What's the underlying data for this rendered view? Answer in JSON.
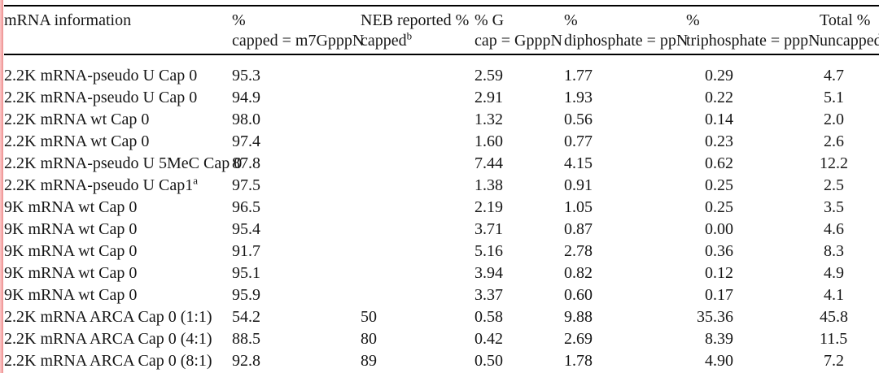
{
  "colors": {
    "background": "#ffffff",
    "text": "#161616",
    "rule": "#000000",
    "margin_bar_light": "#fbc9c9",
    "margin_bar_dark": "#ea8e8e"
  },
  "table": {
    "columns": [
      {
        "key": "name",
        "line1": "mRNA information",
        "line2": "",
        "sup": ""
      },
      {
        "key": "capped",
        "line1": "%",
        "line2": "capped = m7GpppN",
        "sup": ""
      },
      {
        "key": "neb",
        "line1": "NEB reported %",
        "line2": "capped",
        "sup": "b"
      },
      {
        "key": "gcap",
        "line1": "% G",
        "line2": "cap = GpppN",
        "sup": ""
      },
      {
        "key": "dip",
        "line1": "%",
        "line2": "diphosphate = ppN",
        "sup": ""
      },
      {
        "key": "tri",
        "line1": "%",
        "line2": "triphosphate = pppN",
        "sup": ""
      },
      {
        "key": "unc",
        "line1": "Total %",
        "line2": "uncapped",
        "sup": ""
      }
    ],
    "rows": [
      {
        "name": "2.2K mRNA-pseudo U Cap 0",
        "name_sup": "",
        "capped": "95.3",
        "neb": "",
        "gcap": "2.59",
        "dip": "1.77",
        "tri": "0.29",
        "unc": "4.7"
      },
      {
        "name": "2.2K mRNA-pseudo U Cap 0",
        "name_sup": "",
        "capped": "94.9",
        "neb": "",
        "gcap": "2.91",
        "dip": "1.93",
        "tri": "0.22",
        "unc": "5.1"
      },
      {
        "name": "2.2K mRNA wt Cap 0",
        "name_sup": "",
        "capped": "98.0",
        "neb": "",
        "gcap": "1.32",
        "dip": "0.56",
        "tri": "0.14",
        "unc": "2.0"
      },
      {
        "name": "2.2K mRNA wt Cap 0",
        "name_sup": "",
        "capped": "97.4",
        "neb": "",
        "gcap": "1.60",
        "dip": "0.77",
        "tri": "0.23",
        "unc": "2.6"
      },
      {
        "name": "2.2K mRNA-pseudo U 5MeC Cap 0",
        "name_sup": "",
        "capped": "87.8",
        "neb": "",
        "gcap": "7.44",
        "dip": "4.15",
        "tri": "0.62",
        "unc": "12.2"
      },
      {
        "name": "2.2K mRNA-pseudo U Cap1",
        "name_sup": "a",
        "capped": "97.5",
        "neb": "",
        "gcap": "1.38",
        "dip": "0.91",
        "tri": "0.25",
        "unc": "2.5"
      },
      {
        "name": "9K mRNA wt Cap 0",
        "name_sup": "",
        "capped": "96.5",
        "neb": "",
        "gcap": "2.19",
        "dip": "1.05",
        "tri": "0.25",
        "unc": "3.5"
      },
      {
        "name": "9K mRNA wt Cap 0",
        "name_sup": "",
        "capped": "95.4",
        "neb": "",
        "gcap": "3.71",
        "dip": "0.87",
        "tri": "0.00",
        "unc": "4.6"
      },
      {
        "name": "9K mRNA wt Cap 0",
        "name_sup": "",
        "capped": "91.7",
        "neb": "",
        "gcap": "5.16",
        "dip": "2.78",
        "tri": "0.36",
        "unc": "8.3"
      },
      {
        "name": "9K mRNA wt Cap 0",
        "name_sup": "",
        "capped": "95.1",
        "neb": "",
        "gcap": "3.94",
        "dip": "0.82",
        "tri": "0.12",
        "unc": "4.9"
      },
      {
        "name": "9K mRNA wt Cap 0",
        "name_sup": "",
        "capped": "95.9",
        "neb": "",
        "gcap": "3.37",
        "dip": "0.60",
        "tri": "0.17",
        "unc": "4.1"
      },
      {
        "name": "2.2K mRNA ARCA Cap 0 (1:1)",
        "name_sup": "",
        "capped": "54.2",
        "neb": "50",
        "gcap": "0.58",
        "dip": "9.88",
        "tri": "35.36",
        "unc": "45.8"
      },
      {
        "name": "2.2K mRNA ARCA Cap 0 (4:1)",
        "name_sup": "",
        "capped": "88.5",
        "neb": "80",
        "gcap": "0.42",
        "dip": "2.69",
        "tri": "8.39",
        "unc": "11.5"
      },
      {
        "name": "2.2K mRNA ARCA Cap 0 (8:1)",
        "name_sup": "",
        "capped": "92.8",
        "neb": "89",
        "gcap": "0.50",
        "dip": "1.78",
        "tri": "4.90",
        "unc": "7.2"
      }
    ]
  }
}
